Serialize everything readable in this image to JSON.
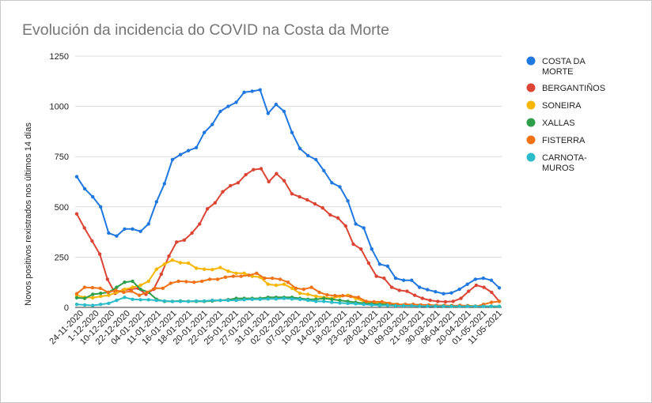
{
  "chart_data": {
    "type": "line",
    "title": "Evolución da incidencia do COVID na Costa da Morte",
    "xlabel": "",
    "ylabel": "Novos positivos rexistrados nos últimos 14 días",
    "ylim": [
      0,
      1250
    ],
    "yticks": [
      "0",
      "250",
      "500",
      "750",
      "1000",
      "1250"
    ],
    "grid": true,
    "legend_position": "right",
    "x_tick_labels": [
      "24-11-2020",
      "1-12-2020",
      "10-12-2020",
      "22-12-2020",
      "04-01-2021",
      "11-01-2021",
      "16-01-2021",
      "18-01-2021",
      "20-01-2021",
      "22-01-2021",
      "25-01-2021",
      "27-01-2021",
      "31-01-2021",
      "02-02-2021",
      "07-02-2021",
      "10-02-2021",
      "14-02-2021",
      "18-02-2021",
      "23-02-2021",
      "28-02-2021",
      "04-03-2021",
      "09-03-2021",
      "21-03-2021",
      "30-03-2021",
      "06-04-2021",
      "20-04-2021",
      "01-05-2021",
      "11-05-2021"
    ],
    "series": [
      {
        "name": "COSTA DA MORTE",
        "color": "#1f77e0",
        "values": [
          650,
          590,
          550,
          500,
          370,
          355,
          390,
          390,
          378,
          415,
          525,
          615,
          735,
          760,
          780,
          795,
          870,
          910,
          975,
          1000,
          1020,
          1070,
          1075,
          1082,
          965,
          1010,
          975,
          870,
          790,
          755,
          735,
          680,
          620,
          600,
          530,
          415,
          395,
          290,
          215,
          205,
          145,
          135,
          135,
          100,
          88,
          78,
          68,
          72,
          90,
          115,
          140,
          145,
          135,
          97
        ]
      },
      {
        "name": "BERGANTIÑOS",
        "color": "#dc4433",
        "values": [
          465,
          395,
          330,
          265,
          140,
          70,
          85,
          90,
          95,
          65,
          90,
          165,
          255,
          325,
          335,
          370,
          415,
          490,
          520,
          575,
          605,
          620,
          660,
          685,
          690,
          625,
          665,
          630,
          565,
          550,
          535,
          515,
          495,
          460,
          445,
          405,
          315,
          290,
          220,
          155,
          145,
          100,
          85,
          80,
          60,
          45,
          35,
          30,
          28,
          30,
          45,
          80,
          110,
          100,
          75,
          30
        ]
      },
      {
        "name": "SONEIRA",
        "color": "#f6b600",
        "values": [
          60,
          50,
          48,
          55,
          60,
          75,
          90,
          100,
          110,
          130,
          190,
          215,
          235,
          222,
          220,
          195,
          190,
          188,
          198,
          180,
          170,
          170,
          155,
          150,
          115,
          110,
          115,
          95,
          70,
          65,
          55,
          50,
          45,
          55,
          60,
          45,
          30,
          22,
          20,
          20,
          15,
          12,
          10,
          10,
          8,
          8,
          8,
          8,
          8,
          8,
          6,
          6,
          6,
          5
        ]
      },
      {
        "name": "XALLAS",
        "color": "#2e9e4a",
        "values": [
          48,
          45,
          65,
          70,
          75,
          100,
          125,
          130,
          90,
          75,
          40,
          30,
          30,
          32,
          30,
          30,
          30,
          32,
          35,
          38,
          45,
          45,
          45,
          45,
          50,
          50,
          50,
          50,
          45,
          40,
          40,
          45,
          40,
          35,
          30,
          25,
          20,
          18,
          15,
          15,
          12,
          10,
          10,
          10,
          8,
          8,
          8,
          8,
          8,
          8,
          6,
          6,
          6,
          5
        ]
      },
      {
        "name": "FISTERRA",
        "color": "#f07216",
        "values": [
          68,
          100,
          98,
          95,
          75,
          85,
          75,
          80,
          60,
          75,
          95,
          95,
          120,
          130,
          128,
          125,
          130,
          140,
          140,
          150,
          155,
          155,
          160,
          170,
          145,
          145,
          140,
          125,
          95,
          90,
          100,
          75,
          62,
          58,
          58,
          55,
          50,
          30,
          28,
          28,
          20,
          15,
          15,
          15,
          12,
          12,
          10,
          10,
          8,
          10,
          8,
          5,
          15,
          25,
          30
        ]
      },
      {
        "name": "CARNOTA-MUROS",
        "color": "#2bbcc8",
        "values": [
          15,
          12,
          10,
          15,
          20,
          35,
          50,
          40,
          38,
          38,
          35,
          32,
          30,
          30,
          30,
          32,
          32,
          35,
          35,
          35,
          35,
          38,
          40,
          40,
          42,
          42,
          45,
          42,
          40,
          35,
          30,
          30,
          25,
          22,
          20,
          18,
          15,
          12,
          10,
          10,
          8,
          8,
          8,
          6,
          6,
          6,
          6,
          5,
          5,
          5,
          5,
          5,
          5,
          5
        ]
      }
    ]
  }
}
